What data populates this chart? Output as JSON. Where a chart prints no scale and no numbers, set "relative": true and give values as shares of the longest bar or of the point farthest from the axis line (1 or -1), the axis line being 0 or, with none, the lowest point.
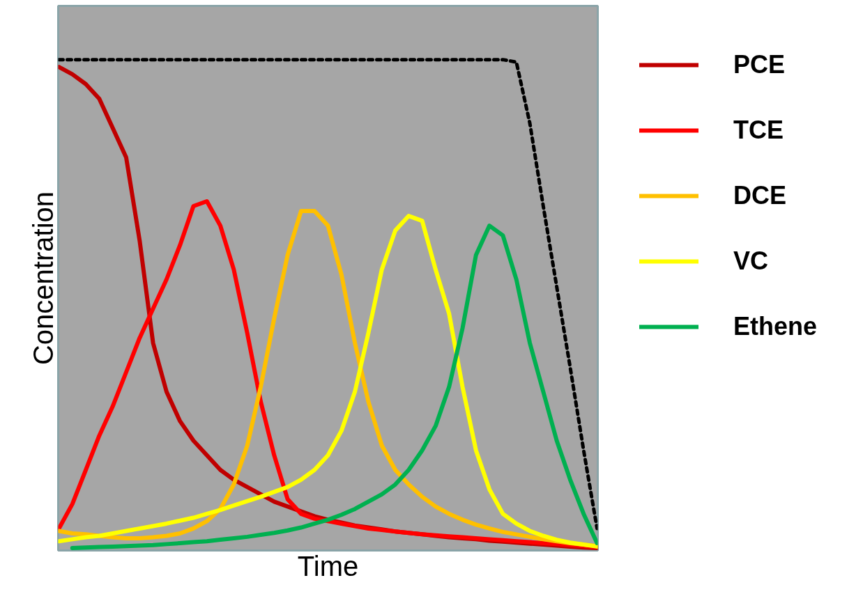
{
  "chart_data": {
    "type": "line",
    "relative": true,
    "xlabel": "Time",
    "ylabel": "Concentration",
    "legend": "right",
    "categories": [
      null,
      null,
      null,
      null,
      null,
      null,
      null,
      null,
      null,
      null,
      null,
      null,
      null,
      null,
      null,
      null,
      null,
      null,
      null,
      null,
      null,
      null,
      null,
      null,
      null,
      null,
      null,
      null,
      null,
      null,
      null,
      null,
      null,
      null,
      null,
      null,
      null,
      null,
      null,
      null,
      null
    ],
    "series": [
      {
        "name": "PCE",
        "color": "#c00000",
        "values": [
          0.985,
          0.97,
          0.95,
          0.92,
          0.86,
          0.8,
          0.63,
          0.42,
          0.32,
          0.26,
          0.22,
          0.19,
          0.16,
          0.14,
          0.125,
          0.11,
          0.095,
          0.085,
          0.075,
          0.065,
          0.058,
          0.052,
          0.046,
          0.042,
          0.038,
          0.034,
          0.031,
          0.028,
          0.025,
          0.022,
          0.02,
          0.018,
          0.015,
          0.013,
          0.011,
          0.009,
          0.007,
          0.005,
          0.003,
          0.001,
          0
        ]
      },
      {
        "name": "TCE",
        "color": "#ff0000",
        "values": [
          0.04,
          0.09,
          0.16,
          0.23,
          0.29,
          0.36,
          0.43,
          0.49,
          0.55,
          0.62,
          0.7,
          0.71,
          0.66,
          0.57,
          0.44,
          0.3,
          0.19,
          0.1,
          0.07,
          0.06,
          0.055,
          0.05,
          0.045,
          0.04,
          0.037,
          0.034,
          0.031,
          0.028,
          0.026,
          0.024,
          0.022,
          0.02,
          0.018,
          0.016,
          0.014,
          0.012,
          0.01,
          0.008,
          0.006,
          0.004,
          0.002
        ]
      },
      {
        "name": "DCE",
        "color": "#ffc000",
        "values": [
          0.035,
          0.03,
          0.028,
          0.025,
          0.022,
          0.02,
          0.02,
          0.022,
          0.025,
          0.03,
          0.04,
          0.055,
          0.08,
          0.13,
          0.21,
          0.33,
          0.47,
          0.6,
          0.69,
          0.69,
          0.66,
          0.56,
          0.42,
          0.3,
          0.21,
          0.16,
          0.13,
          0.105,
          0.085,
          0.07,
          0.058,
          0.048,
          0.04,
          0.033,
          0.028,
          0.023,
          0.018,
          0.014,
          0.01,
          0.007,
          0.004
        ]
      },
      {
        "name": "VC",
        "color": "#ffff00",
        "values": [
          0.014,
          0.018,
          0.022,
          0.025,
          0.03,
          0.035,
          0.04,
          0.045,
          0.05,
          0.056,
          0.062,
          0.07,
          0.078,
          0.087,
          0.096,
          0.105,
          0.115,
          0.125,
          0.14,
          0.16,
          0.19,
          0.24,
          0.32,
          0.44,
          0.57,
          0.65,
          0.68,
          0.67,
          0.57,
          0.48,
          0.33,
          0.2,
          0.12,
          0.07,
          0.05,
          0.035,
          0.025,
          0.017,
          0.011,
          0.007,
          0.003
        ]
      },
      {
        "name": "Ethene",
        "color": "#00b050",
        "values": [
          null,
          0,
          0.001,
          0.002,
          0.003,
          0.004,
          0.005,
          0.006,
          0.008,
          0.01,
          0.012,
          0.014,
          0.017,
          0.02,
          0.023,
          0.027,
          0.031,
          0.036,
          0.042,
          0.05,
          0.058,
          0.068,
          0.08,
          0.095,
          0.11,
          0.13,
          0.16,
          0.2,
          0.25,
          0.33,
          0.45,
          0.6,
          0.66,
          0.64,
          0.55,
          0.42,
          0.32,
          0.22,
          0.14,
          0.07,
          0.01
        ]
      },
      {
        "color": "#000000",
        "line_style": "dashed",
        "values": [
          1,
          1,
          1,
          1,
          1,
          1,
          1,
          1,
          1,
          1,
          1,
          1,
          1,
          1,
          1,
          1,
          1,
          1,
          1,
          1,
          1,
          1,
          1,
          1,
          1,
          1,
          1,
          1,
          1,
          1,
          1,
          1,
          1,
          1,
          0.995,
          0.87,
          0.7,
          0.535,
          0.37,
          0.2,
          0.04
        ]
      }
    ]
  }
}
